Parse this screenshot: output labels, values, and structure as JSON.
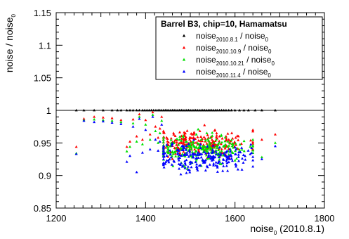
{
  "chart_data": {
    "type": "scatter",
    "title": "",
    "xlabel": "noise",
    "xlabel_sub": "0",
    "xlabel_suffix": " (2010.8.1)",
    "ylabel": "noise / noise",
    "ylabel_sub": "0",
    "xlim": [
      1200,
      1800
    ],
    "ylim": [
      0.85,
      1.15
    ],
    "xticks": [
      1200,
      1400,
      1600,
      1800
    ],
    "yticks": [
      0.85,
      0.9,
      0.95,
      1,
      1.05,
      1.1,
      1.15
    ],
    "xtick_labels": [
      "1200",
      "1400",
      "1600",
      "1800"
    ],
    "ytick_labels": [
      "0.85",
      "0.9",
      "0.95",
      "1",
      "1.05",
      "1.1",
      "1.15"
    ],
    "reference_line": 1.0,
    "grid": false,
    "legend": {
      "position": "top-right",
      "title": "Barrel B3, chip=10, Hamamatsu",
      "entries": [
        {
          "main": "noise",
          "sub": "2010.8.1",
          "rest": " / noise",
          "rest_sub": "0",
          "color": "#000000"
        },
        {
          "main": "noise",
          "sub": "2010.10.9",
          "rest": " / noise",
          "rest_sub": "0",
          "color": "#ff0000"
        },
        {
          "main": "noise",
          "sub": "2010.10.21",
          "rest": " / noise",
          "rest_sub": "0",
          "color": "#00e000"
        },
        {
          "main": "noise",
          "sub": "2010.11.4",
          "rest": " / noise",
          "rest_sub": "0",
          "color": "#0000ff"
        }
      ]
    },
    "series": [
      {
        "name": "noise2010.8.1 / noise0",
        "color": "#000000",
        "points": [
          [
            1245,
            1.0
          ],
          [
            1262,
            1.0
          ],
          [
            1285,
            1.0
          ],
          [
            1305,
            1.0
          ],
          [
            1325,
            1.0
          ],
          [
            1337,
            1.0
          ],
          [
            1345,
            1.0
          ],
          [
            1358,
            1.0
          ],
          [
            1365,
            1.0
          ],
          [
            1372,
            1.0
          ],
          [
            1380,
            1.0
          ],
          [
            1386,
            1.0
          ],
          [
            1393,
            1.0
          ],
          [
            1398,
            1.0
          ],
          [
            1403,
            1.0
          ],
          [
            1408,
            1.0
          ],
          [
            1413,
            1.0
          ],
          [
            1418,
            1.0
          ],
          [
            1423,
            1.0
          ],
          [
            1428,
            1.0
          ],
          [
            1432,
            1.0
          ],
          [
            1436,
            1.0
          ],
          [
            1440,
            1.0
          ],
          [
            1444,
            1.0
          ],
          [
            1448,
            1.0
          ],
          [
            1452,
            1.0
          ],
          [
            1456,
            1.0
          ],
          [
            1460,
            1.0
          ],
          [
            1464,
            1.0
          ],
          [
            1468,
            1.0
          ],
          [
            1472,
            1.0
          ],
          [
            1476,
            1.0
          ],
          [
            1480,
            1.0
          ],
          [
            1484,
            1.0
          ],
          [
            1488,
            1.0
          ],
          [
            1492,
            1.0
          ],
          [
            1496,
            1.0
          ],
          [
            1500,
            1.0
          ],
          [
            1504,
            1.0
          ],
          [
            1508,
            1.0
          ],
          [
            1512,
            1.0
          ],
          [
            1516,
            1.0
          ],
          [
            1520,
            1.0
          ],
          [
            1524,
            1.0
          ],
          [
            1528,
            1.0
          ],
          [
            1532,
            1.0
          ],
          [
            1536,
            1.0
          ],
          [
            1540,
            1.0
          ],
          [
            1544,
            1.0
          ],
          [
            1548,
            1.0
          ],
          [
            1552,
            1.0
          ],
          [
            1556,
            1.0
          ],
          [
            1560,
            1.0
          ],
          [
            1565,
            1.0
          ],
          [
            1570,
            1.0
          ],
          [
            1575,
            1.0
          ],
          [
            1580,
            1.0
          ],
          [
            1586,
            1.0
          ],
          [
            1592,
            1.0
          ],
          [
            1600,
            1.0
          ],
          [
            1610,
            1.0
          ],
          [
            1620,
            1.0
          ],
          [
            1630,
            1.0
          ],
          [
            1645,
            1.0
          ],
          [
            1660,
            1.0
          ],
          [
            1690,
            1.0
          ]
        ]
      },
      {
        "name": "noise2010.10.9 / noise0",
        "color": "#ff0000",
        "cloud": {
          "x_mean": 1520,
          "x_sd": 55,
          "x_min": 1440,
          "x_max": 1640,
          "y_mean": 0.95,
          "y_sd": 0.01,
          "n": 230,
          "seed": 11
        },
        "points": [
          [
            1245,
            0.944
          ],
          [
            1262,
            0.987
          ],
          [
            1285,
            0.99
          ],
          [
            1305,
            0.989
          ],
          [
            1325,
            0.988
          ],
          [
            1345,
            0.985
          ],
          [
            1358,
            0.944
          ],
          [
            1365,
            0.952
          ],
          [
            1372,
            0.986
          ],
          [
            1380,
            0.96
          ],
          [
            1386,
            0.994
          ],
          [
            1393,
            0.955
          ],
          [
            1400,
            0.985
          ],
          [
            1410,
            0.963
          ],
          [
            1416,
            0.997
          ],
          [
            1422,
            0.975
          ],
          [
            1428,
            0.958
          ],
          [
            1432,
            0.972
          ],
          [
            1436,
            0.99
          ],
          [
            1440,
            0.968
          ],
          [
            1660,
            0.955
          ],
          [
            1690,
            0.963
          ]
        ]
      },
      {
        "name": "noise2010.10.21 / noise0",
        "color": "#00e000",
        "cloud": {
          "x_mean": 1520,
          "x_sd": 55,
          "x_min": 1440,
          "x_max": 1640,
          "y_mean": 0.94,
          "y_sd": 0.01,
          "n": 230,
          "seed": 23
        },
        "points": [
          [
            1245,
            0.934
          ],
          [
            1262,
            0.985
          ],
          [
            1285,
            0.986
          ],
          [
            1305,
            0.985
          ],
          [
            1325,
            0.984
          ],
          [
            1345,
            0.982
          ],
          [
            1358,
            0.937
          ],
          [
            1365,
            0.944
          ],
          [
            1372,
            0.98
          ],
          [
            1380,
            0.952
          ],
          [
            1386,
            0.99
          ],
          [
            1393,
            0.948
          ],
          [
            1400,
            0.978
          ],
          [
            1410,
            0.955
          ],
          [
            1416,
            0.993
          ],
          [
            1422,
            0.968
          ],
          [
            1428,
            0.95
          ],
          [
            1432,
            0.965
          ],
          [
            1436,
            0.984
          ],
          [
            1440,
            0.958
          ],
          [
            1660,
            0.928
          ],
          [
            1690,
            0.95
          ]
        ]
      },
      {
        "name": "noise2010.11.4 / noise0",
        "color": "#0000ff",
        "cloud": {
          "x_mean": 1520,
          "x_sd": 55,
          "x_min": 1440,
          "x_max": 1640,
          "y_mean": 0.928,
          "y_sd": 0.011,
          "n": 230,
          "seed": 37
        },
        "points": [
          [
            1245,
            0.933
          ],
          [
            1262,
            0.984
          ],
          [
            1285,
            0.982
          ],
          [
            1305,
            0.983
          ],
          [
            1325,
            0.981
          ],
          [
            1345,
            0.979
          ],
          [
            1358,
            0.921
          ],
          [
            1365,
            0.93
          ],
          [
            1372,
            0.975
          ],
          [
            1380,
            0.905
          ],
          [
            1386,
            0.987
          ],
          [
            1393,
            0.935
          ],
          [
            1400,
            0.97
          ],
          [
            1410,
            0.94
          ],
          [
            1416,
            0.99
          ],
          [
            1422,
            0.955
          ],
          [
            1428,
            0.938
          ],
          [
            1432,
            0.952
          ],
          [
            1436,
            0.978
          ],
          [
            1440,
            0.945
          ],
          [
            1660,
            0.925
          ],
          [
            1690,
            0.945
          ]
        ]
      }
    ]
  }
}
